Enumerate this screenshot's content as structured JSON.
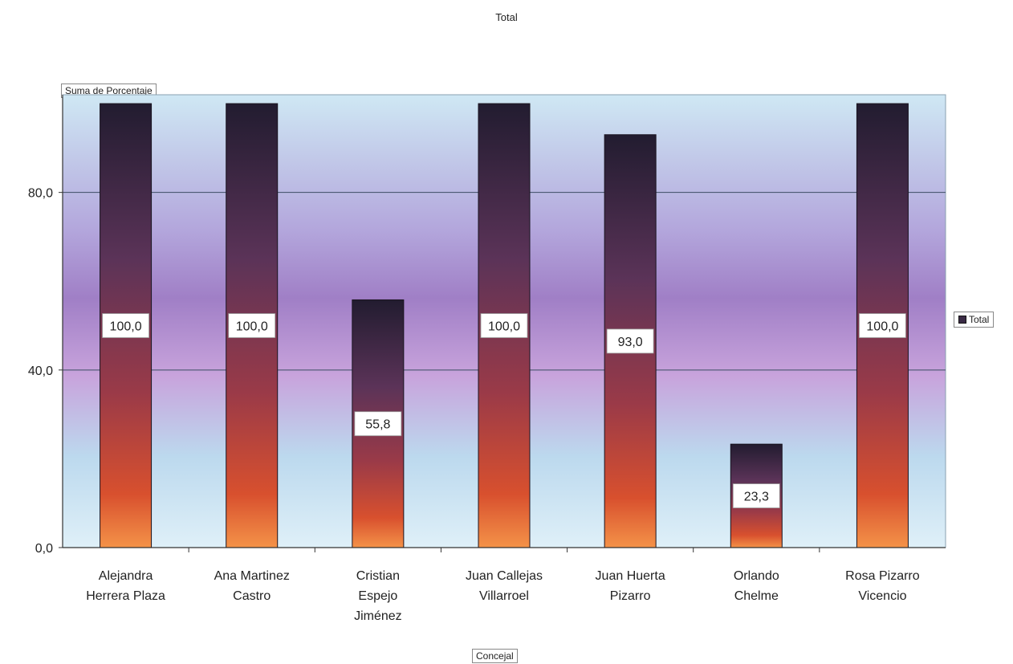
{
  "chart_data": {
    "type": "bar",
    "title": "Total",
    "values_field_label": "Suma de Porcentaje",
    "category_field_label": "Concejal",
    "legend": [
      "Total"
    ],
    "legend_position": "right",
    "categories": [
      [
        "Alejandra",
        "Herrera Plaza"
      ],
      [
        "Ana Martinez",
        "Castro"
      ],
      [
        "Cristian",
        "Espejo",
        "Jiménez"
      ],
      [
        "Juan Callejas",
        "Villarroel"
      ],
      [
        "Juan Huerta",
        "Pizarro"
      ],
      [
        "Orlando",
        "Chelme"
      ],
      [
        "Rosa Pizarro",
        "Vicencio"
      ]
    ],
    "series": [
      {
        "name": "Total",
        "values": [
          100.0,
          100.0,
          55.8,
          100.0,
          93.0,
          23.3,
          100.0
        ]
      }
    ],
    "data_labels": [
      "100,0",
      "100,0",
      "55,8",
      "100,0",
      "93,0",
      "23,3",
      "100,0"
    ],
    "yticks": [
      {
        "value": 0,
        "label": "0,0"
      },
      {
        "value": 40,
        "label": "40,0"
      },
      {
        "value": 80,
        "label": "80,0"
      }
    ],
    "ylim": [
      0,
      102
    ],
    "grid": true,
    "colors": {
      "bar_top": "#2a2235",
      "bar_mid": "#7a3a5a",
      "bar_bottom": "#f07a3a",
      "bg_edge": "#c8e4f2",
      "bg_mid": "#a98ccb",
      "legend_swatch": "#3a2a45"
    }
  }
}
